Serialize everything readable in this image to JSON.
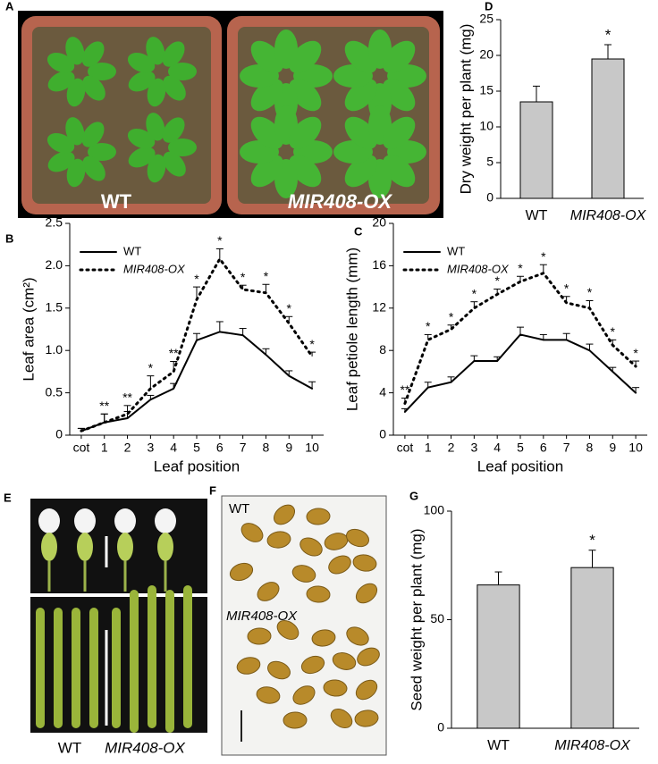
{
  "panel_labels": [
    "A",
    "B",
    "C",
    "D",
    "E",
    "F",
    "G"
  ],
  "photo_a": {
    "labels": [
      "WT",
      "MIR408-OX"
    ]
  },
  "photo_e": {
    "labels": [
      "WT",
      "MIR408-OX"
    ]
  },
  "photo_f": {
    "labels": [
      "WT",
      "MIR408-OX"
    ]
  },
  "chart_data": [
    {
      "type": "bar",
      "ylabel": "Dry weight per plant (mg)",
      "categories": [
        "WT",
        "MIR408-OX"
      ],
      "values": [
        13.5,
        19.5
      ],
      "errors": [
        2.2,
        2.0
      ],
      "annotations": [
        null,
        "*"
      ],
      "color": "#c8c8c8",
      "ylim": [
        0,
        25
      ],
      "yticks": [
        0,
        5,
        10,
        15,
        20,
        25
      ]
    },
    {
      "type": "line",
      "ylabel": "Leaf area (cm²)",
      "xlabel": "Leaf position",
      "categories": [
        "cot",
        "1",
        "2",
        "3",
        "4",
        "5",
        "6",
        "7",
        "8",
        "9",
        "10"
      ],
      "series": [
        {
          "name": "WT",
          "color": "#000000",
          "style": "solid",
          "values": [
            0.05,
            0.15,
            0.2,
            0.42,
            0.55,
            1.12,
            1.22,
            1.18,
            0.95,
            0.7,
            0.55
          ],
          "errors": [
            0.03,
            0.1,
            0.08,
            0.05,
            0.06,
            0.08,
            0.12,
            0.08,
            0.07,
            0.06,
            0.08
          ]
        },
        {
          "name": "MIR408-OX",
          "color": "#000000",
          "style": "dotted",
          "values": [
            0.05,
            0.15,
            0.25,
            0.55,
            0.75,
            1.6,
            2.08,
            1.72,
            1.68,
            1.32,
            0.93
          ],
          "errors": [
            0.03,
            0.1,
            0.1,
            0.15,
            0.12,
            0.15,
            0.12,
            0.05,
            0.1,
            0.08,
            0.05
          ],
          "annotations": [
            null,
            "**",
            "**",
            "*",
            "**",
            "*",
            "*",
            "*",
            "*",
            "*",
            "*"
          ]
        }
      ],
      "ylim": [
        0,
        2.5
      ],
      "yticks": [
        0,
        0.5,
        {
          "value": 1,
          "label": "1.0"
        },
        1.5,
        {
          "value": 2,
          "label": "2.0"
        },
        2.5
      ]
    },
    {
      "type": "line",
      "ylabel": "Leaf petiole length (mm)",
      "xlabel": "Leaf position",
      "categories": [
        "cot",
        "1",
        "2",
        "3",
        "4",
        "5",
        "6",
        "7",
        "8",
        "9",
        "10"
      ],
      "series": [
        {
          "name": "WT",
          "color": "#000000",
          "style": "solid",
          "values": [
            2.2,
            4.5,
            5,
            7,
            7,
            9.5,
            9,
            9,
            8,
            6,
            4
          ],
          "errors": [
            0.3,
            0.5,
            0.5,
            0.5,
            0.4,
            0.7,
            0.5,
            0.6,
            0.6,
            0.4,
            0.5
          ]
        },
        {
          "name": "MIR408-OX",
          "color": "#000000",
          "style": "dotted",
          "values": [
            3,
            9,
            10,
            12,
            13.3,
            14.5,
            15.3,
            12.5,
            12,
            8.5,
            6.5
          ],
          "errors": [
            0.5,
            0.5,
            0.4,
            0.6,
            0.5,
            0.5,
            0.8,
            0.6,
            0.7,
            0.5,
            0.5
          ],
          "annotations": [
            "**",
            "*",
            "*",
            "*",
            "*",
            "*",
            "*",
            "*",
            "*",
            "*",
            "*"
          ]
        }
      ],
      "ylim": [
        0,
        20
      ],
      "yticks": [
        0,
        4,
        8,
        12,
        16,
        20
      ]
    },
    {
      "type": "bar",
      "ylabel": "Seed weight per plant (mg)",
      "categories": [
        "WT",
        "MIR408-OX"
      ],
      "values": [
        66,
        74
      ],
      "errors": [
        6,
        8
      ],
      "annotations": [
        null,
        "*"
      ],
      "color": "#c8c8c8",
      "ylim": [
        0,
        100
      ],
      "yticks": [
        0,
        50,
        100
      ]
    }
  ]
}
